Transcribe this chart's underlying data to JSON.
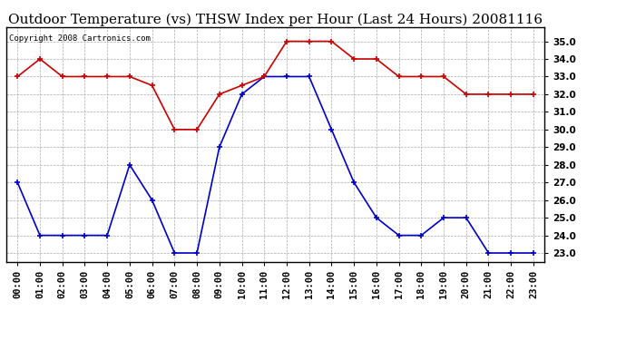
{
  "title": "Outdoor Temperature (vs) THSW Index per Hour (Last 24 Hours) 20081116",
  "copyright": "Copyright 2008 Cartronics.com",
  "hours": [
    "00:00",
    "01:00",
    "02:00",
    "03:00",
    "04:00",
    "05:00",
    "06:00",
    "07:00",
    "08:00",
    "09:00",
    "10:00",
    "11:00",
    "12:00",
    "13:00",
    "14:00",
    "15:00",
    "16:00",
    "17:00",
    "18:00",
    "19:00",
    "20:00",
    "21:00",
    "22:00",
    "23:00"
  ],
  "blue_data": [
    27.0,
    24.0,
    24.0,
    24.0,
    24.0,
    28.0,
    26.0,
    23.0,
    23.0,
    29.0,
    32.0,
    33.0,
    33.0,
    33.0,
    30.0,
    27.0,
    25.0,
    24.0,
    24.0,
    25.0,
    25.0,
    23.0,
    23.0,
    23.0
  ],
  "red_data": [
    33.0,
    34.0,
    33.0,
    33.0,
    33.0,
    33.0,
    32.5,
    30.0,
    30.0,
    32.0,
    32.5,
    33.0,
    35.0,
    35.0,
    35.0,
    34.0,
    34.0,
    33.0,
    33.0,
    33.0,
    32.0,
    32.0,
    32.0,
    32.0
  ],
  "ylim": [
    22.5,
    35.8
  ],
  "yticks": [
    23.0,
    24.0,
    25.0,
    26.0,
    27.0,
    28.0,
    29.0,
    30.0,
    31.0,
    32.0,
    33.0,
    34.0,
    35.0
  ],
  "blue_color": "#0000cc",
  "red_color": "#cc0000",
  "bg_color": "#ffffff",
  "plot_bg_color": "#ffffff",
  "grid_color": "#aaaaaa",
  "title_fontsize": 11,
  "copyright_fontsize": 6.5,
  "tick_fontsize": 7.5
}
